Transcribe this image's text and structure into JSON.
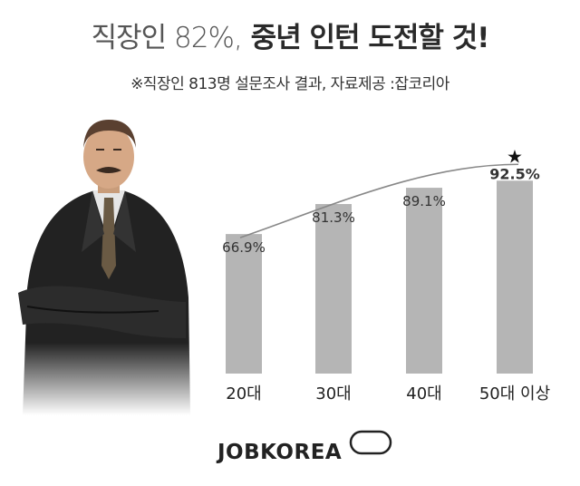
{
  "header": {
    "title_prefix": "직장인 82%,",
    "title_main": "중년 인턴 도전할 것!",
    "subtitle": "※직장인 813명 설문조사 결과, 자료제공 :잡코리아"
  },
  "brand": {
    "logo_text": "JOBKOREA"
  },
  "colors": {
    "bar": "#b5b5b5",
    "trend_line": "#888888",
    "text": "#2a2a2a"
  },
  "chart_data": {
    "type": "bar",
    "categories": [
      "20대",
      "30대",
      "40대",
      "50대 이상"
    ],
    "values": [
      66.9,
      81.3,
      89.1,
      92.5
    ],
    "value_labels": [
      "66.9%",
      "81.3%",
      "89.1%",
      "92.5%"
    ],
    "highlight_index": 3,
    "highlight_marker": "★",
    "title": "",
    "xlabel": "",
    "ylabel": "",
    "grid": false,
    "trend_line": true
  }
}
